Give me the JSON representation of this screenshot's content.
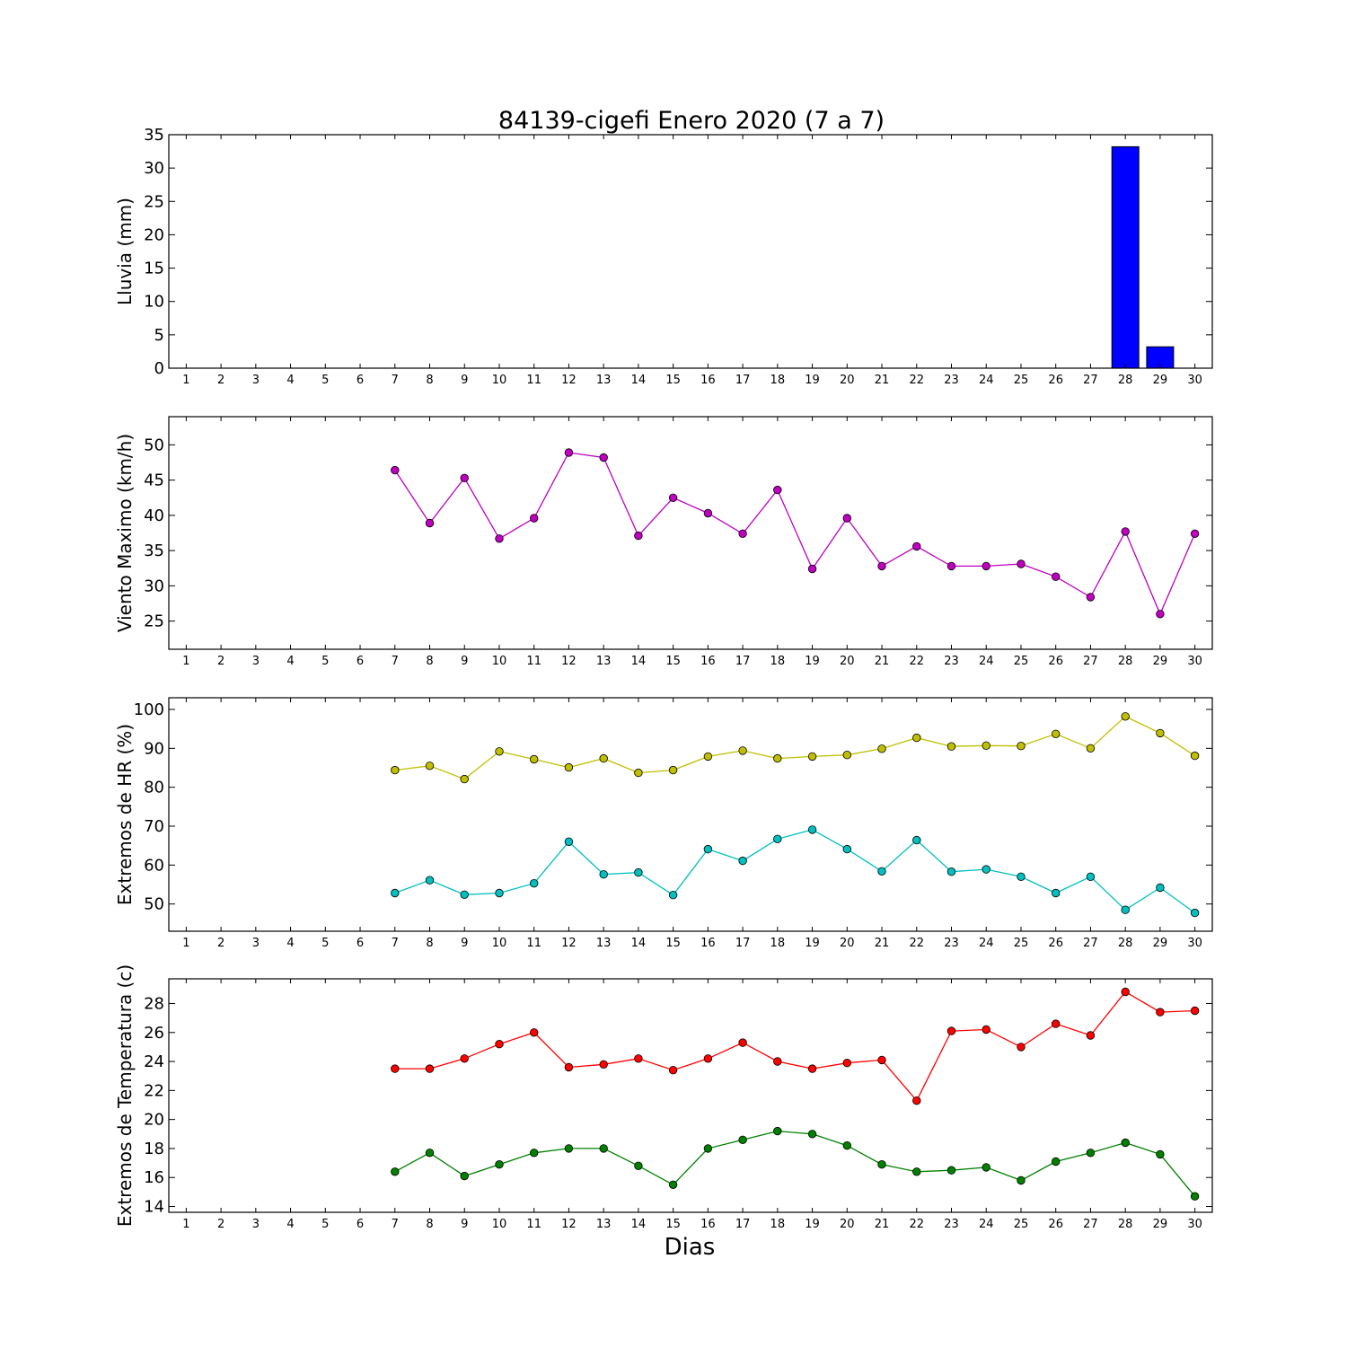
{
  "chart_data": {
    "type": "multi-panel",
    "title": "84139-cigefi Enero 2020  (7 a 7)",
    "xlabel": "Dias",
    "x_categories": [
      1,
      2,
      3,
      4,
      5,
      6,
      7,
      8,
      9,
      10,
      11,
      12,
      13,
      14,
      15,
      16,
      17,
      18,
      19,
      20,
      21,
      22,
      23,
      24,
      25,
      26,
      27,
      28,
      29,
      30
    ],
    "panels": [
      {
        "type": "bar",
        "ylabel": "Lluvia (mm)",
        "ylim": [
          0,
          35
        ],
        "yticks": [
          0,
          5,
          10,
          15,
          20,
          25,
          30,
          35
        ],
        "series": [
          {
            "color": "#0000ff",
            "x": [
              7,
              8,
              9,
              10,
              11,
              12,
              13,
              14,
              15,
              16,
              17,
              18,
              19,
              20,
              21,
              22,
              23,
              24,
              25,
              26,
              27,
              28,
              29
            ],
            "values": [
              0,
              0,
              0,
              0,
              0,
              0,
              0,
              0,
              0,
              0,
              0,
              0,
              0,
              0,
              0,
              0,
              0,
              0,
              0,
              0,
              0,
              33.2,
              3.2
            ]
          }
        ]
      },
      {
        "type": "line",
        "ylabel": "Viento Maximo (km/h)",
        "ylim": [
          21,
          54
        ],
        "yticks": [
          25,
          30,
          35,
          40,
          45,
          50
        ],
        "series": [
          {
            "color": "#bf00bf",
            "x": [
              7,
              8,
              9,
              10,
              11,
              12,
              13,
              14,
              15,
              16,
              17,
              18,
              19,
              20,
              21,
              22,
              23,
              24,
              25,
              26,
              27,
              28,
              29,
              30
            ],
            "values": [
              46.4,
              38.9,
              45.3,
              36.7,
              39.6,
              48.9,
              48.2,
              37.1,
              42.5,
              40.3,
              37.4,
              43.6,
              32.4,
              39.6,
              32.8,
              35.6,
              32.8,
              32.8,
              33.1,
              31.3,
              28.4,
              37.7,
              26.0,
              37.4
            ]
          }
        ]
      },
      {
        "type": "line",
        "ylabel": "Extremos de HR (%)",
        "ylim": [
          43,
          103
        ],
        "yticks": [
          50,
          60,
          70,
          80,
          90,
          100
        ],
        "series": [
          {
            "color": "#bfbf00",
            "x": [
              7,
              8,
              9,
              10,
              11,
              12,
              13,
              14,
              15,
              16,
              17,
              18,
              19,
              20,
              21,
              22,
              23,
              24,
              25,
              26,
              27,
              28,
              29,
              30
            ],
            "values": [
              84.4,
              85.5,
              82.1,
              89.2,
              87.2,
              85.1,
              87.4,
              83.7,
              84.4,
              87.9,
              89.4,
              87.4,
              87.9,
              88.3,
              89.9,
              92.7,
              90.5,
              90.7,
              90.6,
              93.7,
              90.0,
              98.2,
              93.9,
              88.1
            ]
          },
          {
            "color": "#00bfbf",
            "x": [
              7,
              8,
              9,
              10,
              11,
              12,
              13,
              14,
              15,
              16,
              17,
              18,
              19,
              20,
              21,
              22,
              23,
              24,
              25,
              26,
              27,
              28,
              29,
              30
            ],
            "values": [
              52.8,
              56.1,
              52.4,
              52.8,
              55.3,
              66.0,
              57.6,
              58.1,
              52.3,
              64.1,
              61.1,
              66.7,
              69.1,
              64.1,
              58.4,
              66.4,
              58.3,
              58.9,
              57.0,
              52.8,
              57.0,
              48.5,
              54.2,
              47.7
            ]
          }
        ]
      },
      {
        "type": "line",
        "ylabel": "Extremos de Temperatura (c)",
        "ylim": [
          13.6,
          29.7
        ],
        "yticks": [
          14,
          16,
          18,
          20,
          22,
          24,
          26,
          28
        ],
        "series": [
          {
            "color": "#ff0000",
            "x": [
              7,
              8,
              9,
              10,
              11,
              12,
              13,
              14,
              15,
              16,
              17,
              18,
              19,
              20,
              21,
              22,
              23,
              24,
              25,
              26,
              27,
              28,
              29,
              30
            ],
            "values": [
              23.5,
              23.5,
              24.2,
              25.2,
              26.0,
              23.6,
              23.8,
              24.2,
              23.4,
              24.2,
              25.3,
              24.0,
              23.5,
              23.9,
              24.1,
              21.3,
              26.1,
              26.2,
              25.0,
              26.6,
              25.8,
              28.8,
              27.4,
              27.5
            ]
          },
          {
            "color": "#008000",
            "x": [
              7,
              8,
              9,
              10,
              11,
              12,
              13,
              14,
              15,
              16,
              17,
              18,
              19,
              20,
              21,
              22,
              23,
              24,
              25,
              26,
              27,
              28,
              29,
              30
            ],
            "values": [
              16.4,
              17.7,
              16.1,
              16.9,
              17.7,
              18.0,
              18.0,
              16.8,
              15.5,
              18.0,
              18.6,
              19.2,
              19.0,
              18.2,
              16.9,
              16.4,
              16.5,
              16.7,
              15.8,
              17.1,
              17.7,
              18.4,
              17.6,
              14.7
            ]
          }
        ]
      }
    ]
  }
}
